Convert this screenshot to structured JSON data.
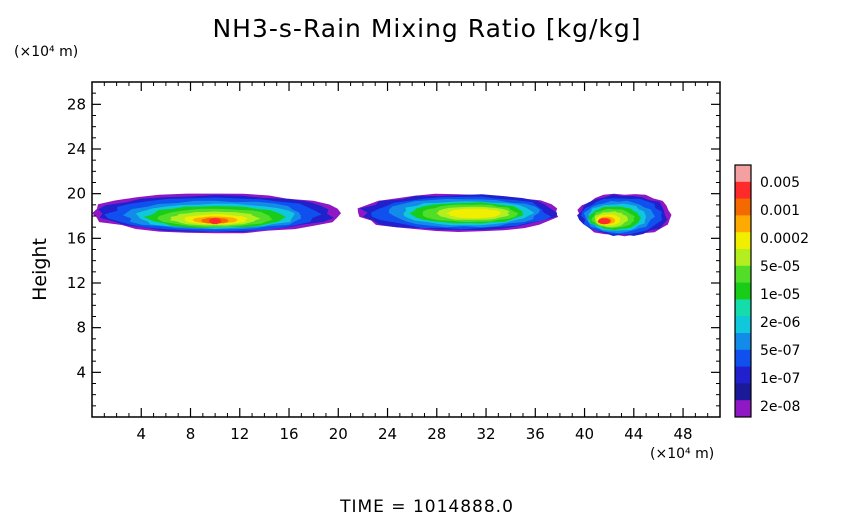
{
  "chart_data": {
    "type": "heatmap",
    "title": "NH3-s-Rain Mixing Ratio [kg/kg]",
    "ylabel": "Height",
    "x_unit_label": "(×10⁴ m)",
    "y_unit_label": "(×10⁴ m)",
    "xlim": [
      0,
      51
    ],
    "ylim": [
      0,
      30
    ],
    "x_ticks": [
      4,
      8,
      12,
      16,
      20,
      24,
      28,
      32,
      36,
      40,
      44,
      48
    ],
    "y_ticks": [
      4,
      8,
      12,
      16,
      20,
      24,
      28
    ],
    "colorbar": {
      "labels": [
        "0.005",
        "0.001",
        "0.0002",
        "5e-05",
        "1e-05",
        "2e-06",
        "5e-07",
        "1e-07",
        "2e-08"
      ],
      "colors": [
        "#f4a0a0",
        "#ff2a2a",
        "#f56a00",
        "#ffaa00",
        "#f2ee00",
        "#b4ee1e",
        "#52dd28",
        "#18cc18",
        "#14dcaa",
        "#10c8dc",
        "#128ce8",
        "#1050ee",
        "#2020cc",
        "#1a1a98",
        "#9018c4"
      ]
    },
    "regions": [
      {
        "name": "cloud-west",
        "x_range": [
          0,
          20
        ],
        "y_range": [
          16.5,
          20
        ],
        "peak_x": 10,
        "peak_y": 17.5,
        "peak_value": 0.0002
      },
      {
        "name": "cloud-center",
        "x_range": [
          21.5,
          38
        ],
        "y_range": [
          16.6,
          20
        ],
        "peak_x": 31.5,
        "peak_y": 18.2,
        "peak_value": 5e-05
      },
      {
        "name": "cloud-east",
        "x_range": [
          39.5,
          47
        ],
        "y_range": [
          16.2,
          20
        ],
        "peak_x": 41.5,
        "peak_y": 17.5,
        "peak_value": 0.0002
      }
    ]
  },
  "footer": {
    "time": "TIME  =  1014888.0"
  }
}
